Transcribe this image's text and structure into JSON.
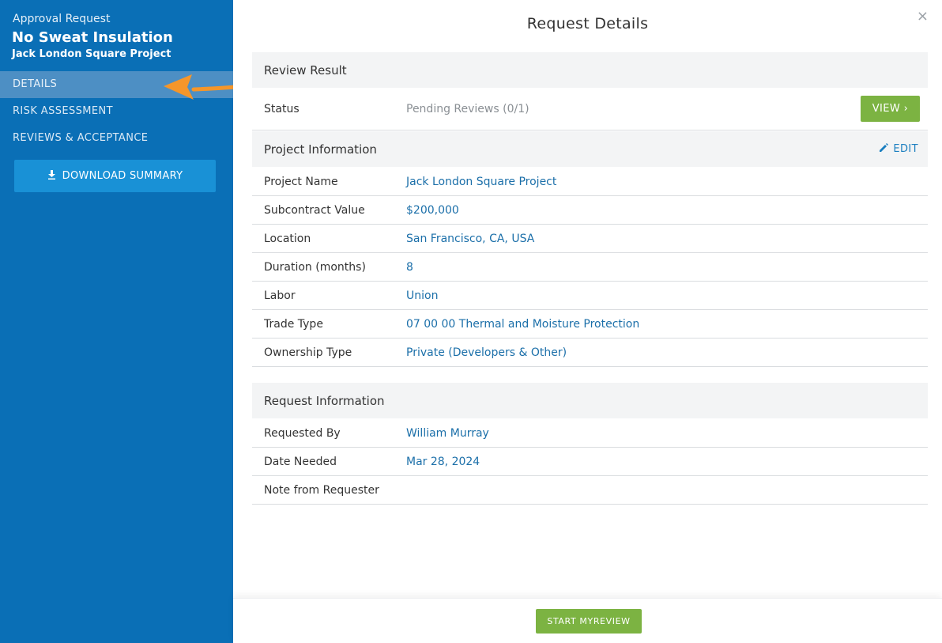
{
  "sidebar": {
    "kicker": "Approval Request",
    "title": "No Sweat Insulation",
    "subtitle": "Jack London Square Project",
    "nav": [
      {
        "label": "DETAILS",
        "active": true
      },
      {
        "label": "RISK ASSESSMENT",
        "active": false
      },
      {
        "label": "REVIEWS & ACCEPTANCE",
        "active": false
      }
    ],
    "download_label": "DOWNLOAD SUMMARY",
    "download_icon": "download-icon",
    "annotation_icon": "orange-arrow-icon"
  },
  "main": {
    "title": "Request Details",
    "close_icon": "×",
    "review": {
      "heading": "Review Result",
      "status_label": "Status",
      "status_value": "Pending Reviews (0/1)",
      "view_label": "VIEW ›"
    },
    "project": {
      "heading": "Project Information",
      "edit_label": "EDIT",
      "rows": [
        {
          "label": "Project Name",
          "value": "Jack London Square Project"
        },
        {
          "label": "Subcontract Value",
          "value": "$200,000"
        },
        {
          "label": "Location",
          "value": "San Francisco, CA, USA"
        },
        {
          "label": "Duration (months)",
          "value": "8"
        },
        {
          "label": "Labor",
          "value": "Union"
        },
        {
          "label": "Trade Type",
          "value": "07 00 00 Thermal and Moisture Protection"
        },
        {
          "label": "Ownership Type",
          "value": "Private (Developers & Other)"
        }
      ]
    },
    "request": {
      "heading": "Request Information",
      "rows": [
        {
          "label": "Requested By",
          "value": "William Murray"
        },
        {
          "label": "Date Needed",
          "value": "Mar 28, 2024"
        },
        {
          "label": "Note from Requester",
          "value": ""
        }
      ]
    },
    "start_label": "START MYREVIEW"
  },
  "colors": {
    "sidebar_bg": "#0a6fb6",
    "active_nav": "#4d8fc4",
    "download_btn": "#1991d6",
    "green_btn": "#7cb342",
    "link": "#1b6fa9",
    "arrow": "#f5962a"
  }
}
